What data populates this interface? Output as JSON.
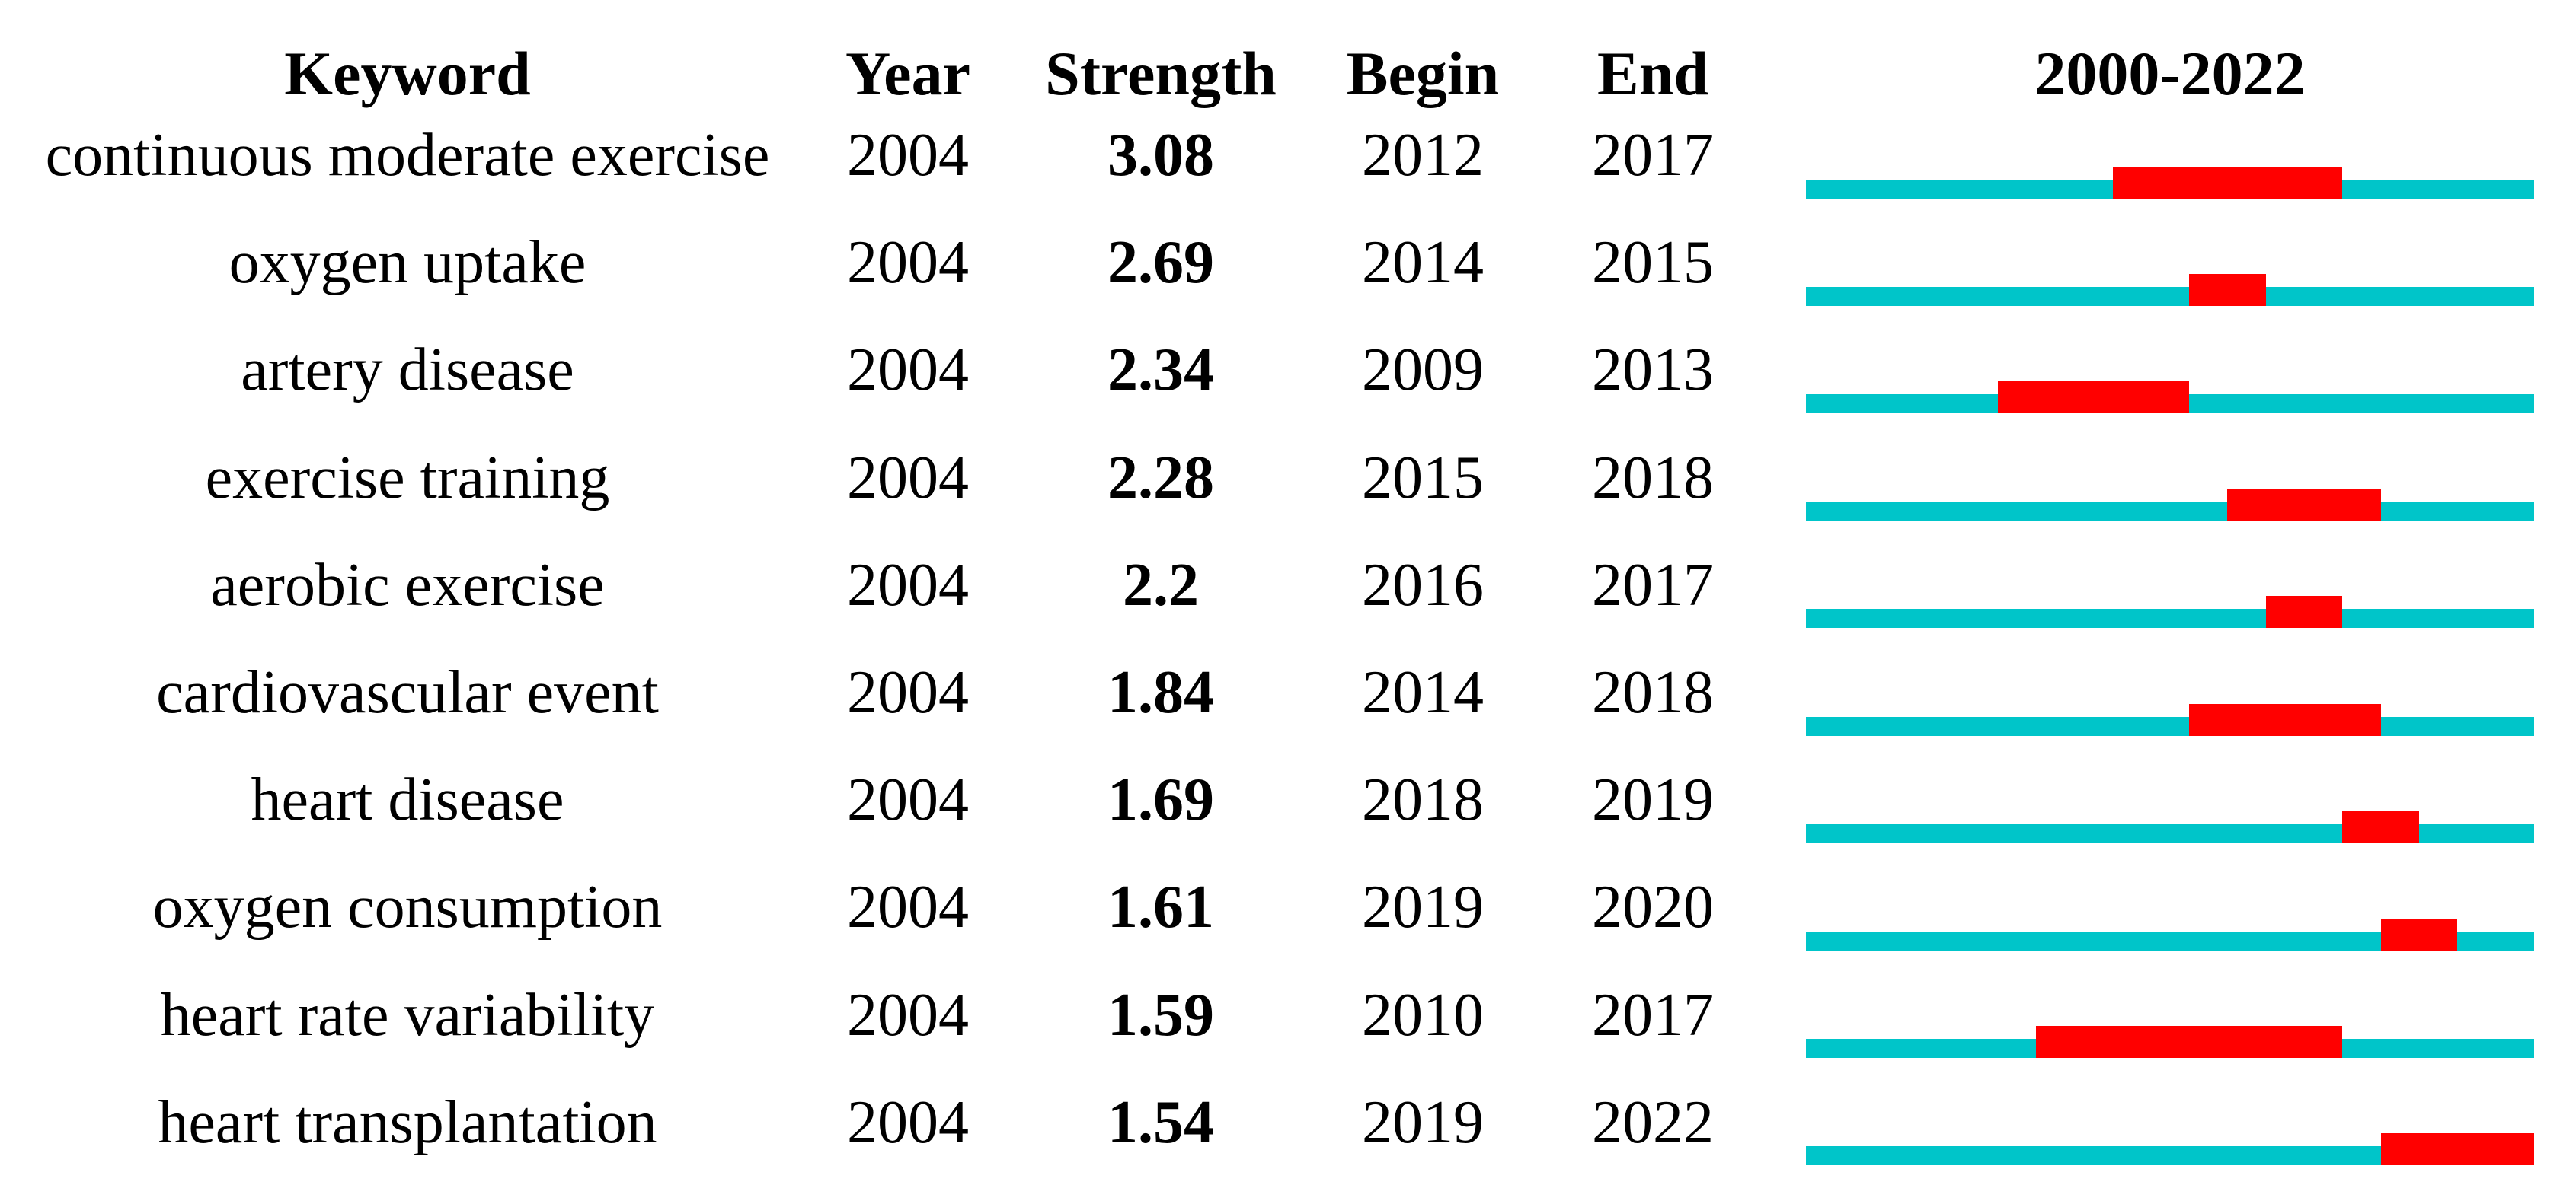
{
  "header": {
    "keyword": "Keyword",
    "year": "Year",
    "strength": "Strength",
    "begin": "Begin",
    "end": "End",
    "range": "2000-2022"
  },
  "chart_data": {
    "type": "bar",
    "subtype": "citation-burst-timeline",
    "period": {
      "start": 2000,
      "end": 2022
    },
    "colors": {
      "track": "#00C5C9",
      "burst": "#FF0000"
    },
    "columns": [
      "Keyword",
      "Year",
      "Strength",
      "Begin",
      "End",
      "2000-2022"
    ],
    "rows": [
      {
        "keyword": "continuous moderate exercise",
        "year": 2004,
        "strength": "3.08",
        "begin": 2012,
        "end": 2017
      },
      {
        "keyword": "oxygen uptake",
        "year": 2004,
        "strength": "2.69",
        "begin": 2014,
        "end": 2015
      },
      {
        "keyword": "artery disease",
        "year": 2004,
        "strength": "2.34",
        "begin": 2009,
        "end": 2013
      },
      {
        "keyword": "exercise training",
        "year": 2004,
        "strength": "2.28",
        "begin": 2015,
        "end": 2018
      },
      {
        "keyword": "aerobic exercise",
        "year": 2004,
        "strength": "2.2",
        "begin": 2016,
        "end": 2017
      },
      {
        "keyword": "cardiovascular event",
        "year": 2004,
        "strength": "1.84",
        "begin": 2014,
        "end": 2018
      },
      {
        "keyword": "heart disease",
        "year": 2004,
        "strength": "1.69",
        "begin": 2018,
        "end": 2019
      },
      {
        "keyword": "oxygen consumption",
        "year": 2004,
        "strength": "1.61",
        "begin": 2019,
        "end": 2020
      },
      {
        "keyword": "heart rate variability",
        "year": 2004,
        "strength": "1.59",
        "begin": 2010,
        "end": 2017
      },
      {
        "keyword": "heart transplantation",
        "year": 2004,
        "strength": "1.54",
        "begin": 2019,
        "end": 2022
      }
    ]
  }
}
